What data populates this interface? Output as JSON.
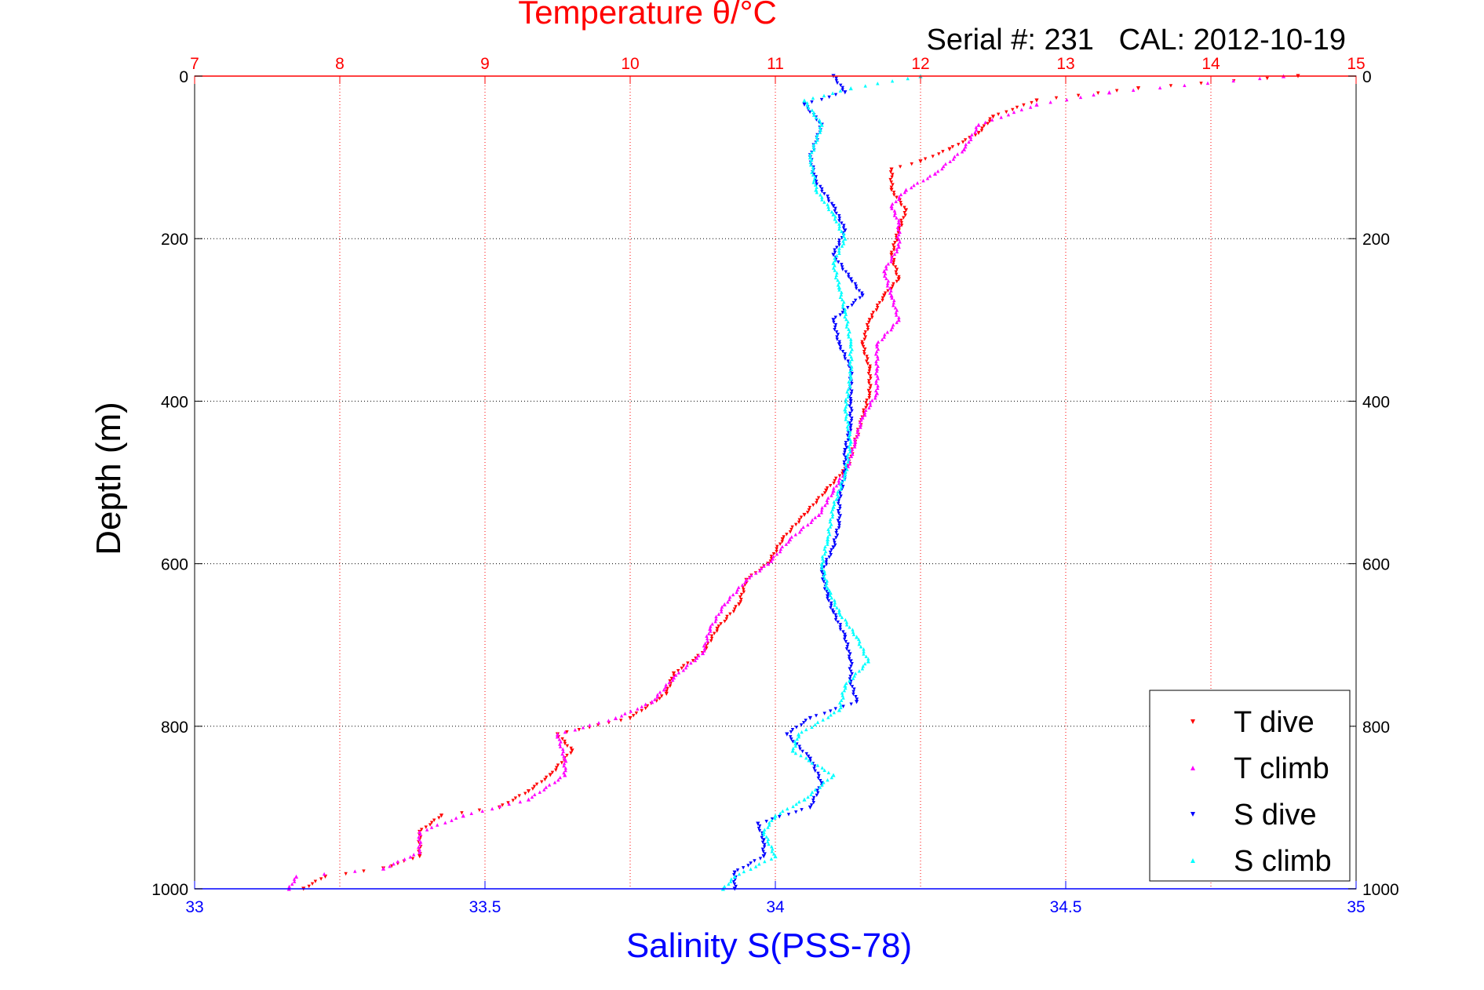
{
  "chart_data": {
    "type": "scatter",
    "title": "Temperature θ/°C",
    "subtitle": "Serial #: 231   CAL: 2012-10-19",
    "xlabel": "Salinity S(PSS-78)",
    "ylabel": "Depth (m)",
    "top_axis": {
      "label": "Temperature θ/°C",
      "range": [
        7,
        15
      ],
      "ticks": [
        "7",
        "8",
        "9",
        "10",
        "11",
        "12",
        "13",
        "14",
        "15"
      ],
      "color": "#ff0000"
    },
    "bottom_axis": {
      "label": "Salinity S(PSS-78)",
      "range": [
        33,
        35
      ],
      "ticks": [
        "33",
        "33.5",
        "34",
        "34.5",
        "35"
      ],
      "color": "#0000ff"
    },
    "y_axis": {
      "label": "Depth (m)",
      "range": [
        0,
        1000
      ],
      "reversed": true,
      "ticks": [
        "0",
        "200",
        "400",
        "600",
        "800",
        "1000"
      ]
    },
    "grid": true,
    "legend_position": "bottom-right",
    "series": [
      {
        "name": "T dive",
        "axis": "temperature",
        "color": "#ff0000",
        "marker": "triangle-down",
        "points": [
          [
            14.6,
            0
          ],
          [
            13.5,
            15
          ],
          [
            12.8,
            30
          ],
          [
            12.5,
            50
          ],
          [
            12.4,
            70
          ],
          [
            12.2,
            90
          ],
          [
            12.0,
            105
          ],
          [
            11.8,
            115
          ],
          [
            11.8,
            140
          ],
          [
            11.9,
            165
          ],
          [
            11.85,
            190
          ],
          [
            11.8,
            220
          ],
          [
            11.85,
            250
          ],
          [
            11.75,
            270
          ],
          [
            11.65,
            300
          ],
          [
            11.6,
            330
          ],
          [
            11.65,
            360
          ],
          [
            11.65,
            390
          ],
          [
            11.6,
            420
          ],
          [
            11.55,
            450
          ],
          [
            11.5,
            480
          ],
          [
            11.35,
            510
          ],
          [
            11.2,
            540
          ],
          [
            11.05,
            570
          ],
          [
            10.95,
            600
          ],
          [
            10.8,
            620
          ],
          [
            10.75,
            650
          ],
          [
            10.6,
            680
          ],
          [
            10.5,
            710
          ],
          [
            10.3,
            735
          ],
          [
            10.25,
            760
          ],
          [
            10.0,
            790
          ],
          [
            9.5,
            810
          ],
          [
            9.6,
            830
          ],
          [
            9.45,
            860
          ],
          [
            9.3,
            880
          ],
          [
            9.1,
            900
          ],
          [
            8.7,
            910
          ],
          [
            8.55,
            930
          ],
          [
            8.55,
            960
          ],
          [
            8.3,
            975
          ],
          [
            7.9,
            985
          ],
          [
            7.75,
            1000
          ]
        ]
      },
      {
        "name": "T climb",
        "axis": "temperature",
        "color": "#ff00ff",
        "marker": "triangle-up",
        "points": [
          [
            14.5,
            0
          ],
          [
            13.3,
            20
          ],
          [
            12.8,
            35
          ],
          [
            12.4,
            60
          ],
          [
            12.3,
            90
          ],
          [
            12.1,
            120
          ],
          [
            11.9,
            140
          ],
          [
            11.8,
            160
          ],
          [
            11.85,
            180
          ],
          [
            11.85,
            210
          ],
          [
            11.75,
            240
          ],
          [
            11.8,
            270
          ],
          [
            11.85,
            300
          ],
          [
            11.7,
            330
          ],
          [
            11.7,
            360
          ],
          [
            11.7,
            390
          ],
          [
            11.6,
            420
          ],
          [
            11.55,
            450
          ],
          [
            11.5,
            480
          ],
          [
            11.4,
            510
          ],
          [
            11.3,
            540
          ],
          [
            11.1,
            570
          ],
          [
            10.95,
            600
          ],
          [
            10.8,
            620
          ],
          [
            10.65,
            650
          ],
          [
            10.55,
            680
          ],
          [
            10.5,
            710
          ],
          [
            10.3,
            740
          ],
          [
            10.15,
            770
          ],
          [
            9.9,
            790
          ],
          [
            9.5,
            810
          ],
          [
            9.55,
            840
          ],
          [
            9.55,
            860
          ],
          [
            9.3,
            890
          ],
          [
            8.85,
            910
          ],
          [
            8.55,
            930
          ],
          [
            8.55,
            955
          ],
          [
            8.3,
            975
          ],
          [
            7.7,
            985
          ],
          [
            7.65,
            1000
          ]
        ]
      },
      {
        "name": "S dive",
        "axis": "salinity",
        "color": "#0000ff",
        "marker": "triangle-down",
        "points": [
          [
            34.1,
            0
          ],
          [
            34.12,
            20
          ],
          [
            34.05,
            35
          ],
          [
            34.08,
            60
          ],
          [
            34.06,
            100
          ],
          [
            34.07,
            130
          ],
          [
            34.1,
            160
          ],
          [
            34.12,
            190
          ],
          [
            34.1,
            220
          ],
          [
            34.13,
            250
          ],
          [
            34.15,
            270
          ],
          [
            34.1,
            300
          ],
          [
            34.11,
            330
          ],
          [
            34.13,
            360
          ],
          [
            34.13,
            400
          ],
          [
            34.13,
            430
          ],
          [
            34.12,
            460
          ],
          [
            34.12,
            490
          ],
          [
            34.11,
            520
          ],
          [
            34.11,
            550
          ],
          [
            34.1,
            580
          ],
          [
            34.08,
            610
          ],
          [
            34.09,
            640
          ],
          [
            34.1,
            660
          ],
          [
            34.12,
            690
          ],
          [
            34.13,
            720
          ],
          [
            34.13,
            745
          ],
          [
            34.14,
            770
          ],
          [
            34.06,
            790
          ],
          [
            34.02,
            810
          ],
          [
            34.06,
            840
          ],
          [
            34.08,
            870
          ],
          [
            34.06,
            900
          ],
          [
            33.97,
            920
          ],
          [
            33.98,
            940
          ],
          [
            33.98,
            960
          ],
          [
            33.93,
            980
          ],
          [
            33.93,
            1000
          ]
        ]
      },
      {
        "name": "S climb",
        "axis": "salinity",
        "color": "#00ffff",
        "marker": "triangle-up",
        "points": [
          [
            34.25,
            0
          ],
          [
            34.13,
            15
          ],
          [
            34.05,
            30
          ],
          [
            34.08,
            60
          ],
          [
            34.06,
            100
          ],
          [
            34.07,
            140
          ],
          [
            34.1,
            170
          ],
          [
            34.12,
            200
          ],
          [
            34.1,
            230
          ],
          [
            34.11,
            260
          ],
          [
            34.12,
            290
          ],
          [
            34.13,
            330
          ],
          [
            34.13,
            370
          ],
          [
            34.12,
            410
          ],
          [
            34.13,
            450
          ],
          [
            34.12,
            490
          ],
          [
            34.1,
            530
          ],
          [
            34.09,
            570
          ],
          [
            34.08,
            600
          ],
          [
            34.09,
            630
          ],
          [
            34.11,
            660
          ],
          [
            34.14,
            690
          ],
          [
            34.16,
            720
          ],
          [
            34.12,
            750
          ],
          [
            34.11,
            780
          ],
          [
            34.04,
            810
          ],
          [
            34.03,
            830
          ],
          [
            34.1,
            860
          ],
          [
            34.05,
            890
          ],
          [
            34.0,
            910
          ],
          [
            33.98,
            930
          ],
          [
            34.0,
            960
          ],
          [
            33.93,
            985
          ],
          [
            33.91,
            1000
          ]
        ]
      }
    ]
  }
}
